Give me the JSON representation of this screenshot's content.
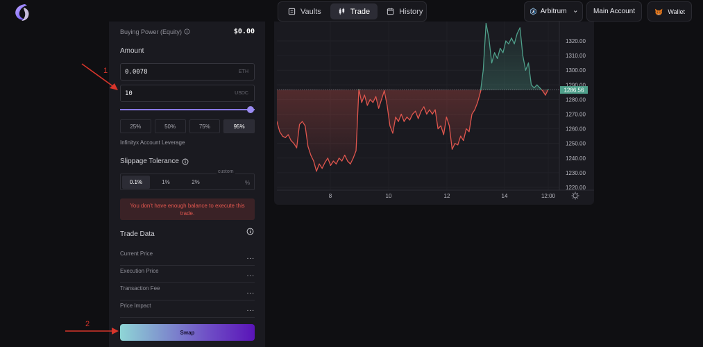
{
  "nav": {
    "tabs": [
      {
        "label": "Vaults",
        "icon": "vault-icon",
        "active": false
      },
      {
        "label": "Trade",
        "icon": "candles-icon",
        "active": true
      },
      {
        "label": "History",
        "icon": "history-icon",
        "active": false
      }
    ]
  },
  "header": {
    "network": "Arbitrum",
    "account": "Main Account",
    "wallet": "Wallet"
  },
  "panel": {
    "buying_power_label": "Buying Power (Equity)",
    "buying_power_value": "$0.00",
    "amount_label": "Amount",
    "eth_value": "0.0078",
    "eth_unit": "ETH",
    "usdc_value": "10",
    "usdc_unit": "USDC",
    "slider_fraction": 0.95,
    "percent_options": [
      "25%",
      "50%",
      "75%",
      "95%"
    ],
    "percent_selected": "95%",
    "leverage_note": "Infinityx Account Leverage",
    "slippage_title": "Slippage Tolerance",
    "slippage_options": [
      "0.1%",
      "1%",
      "2%"
    ],
    "slippage_selected": "0.1%",
    "custom_label": "custom",
    "custom_unit": "%",
    "error_text": "You don't have enough balance to execute this trade.",
    "trade_data_title": "Trade Data",
    "trade_rows": [
      {
        "label": "Current Price",
        "value": "..."
      },
      {
        "label": "Execution Price",
        "value": "..."
      },
      {
        "label": "Transaction Fee",
        "value": "..."
      },
      {
        "label": "Price Impact",
        "value": "..."
      }
    ],
    "swap_label": "Swap"
  },
  "annotations": [
    "1",
    "2"
  ],
  "colors": {
    "up": "#4fa08b",
    "down": "#e0564e",
    "accent": "#8a7ae6"
  },
  "chart_data": {
    "type": "area",
    "ylim": [
      1220,
      1330
    ],
    "y_ticks": [
      "1320.00",
      "1310.00",
      "1300.00",
      "1290.00",
      "1280.00",
      "1270.00",
      "1260.00",
      "1250.00",
      "1240.00",
      "1230.00",
      "1220.00"
    ],
    "x_ticks": [
      "8",
      "10",
      "12",
      "14",
      "12:00"
    ],
    "baseline": 1286.56,
    "last_price_label": "1286.56",
    "series": [
      {
        "values": [
          1265,
          1258,
          1255,
          1254,
          1256,
          1252,
          1250,
          1247,
          1263,
          1265,
          1262,
          1248,
          1242,
          1238,
          1231,
          1236,
          1233,
          1237,
          1240,
          1235,
          1238,
          1236,
          1240,
          1238,
          1242,
          1238,
          1236,
          1240,
          1245,
          1287,
          1278,
          1283,
          1276,
          1280,
          1278,
          1282,
          1274,
          1280,
          1286,
          1276,
          1262,
          1257,
          1268,
          1265,
          1270,
          1265,
          1268,
          1266,
          1270,
          1272,
          1267,
          1272,
          1275,
          1270,
          1273,
          1270,
          1273,
          1260,
          1262,
          1256,
          1268,
          1262,
          1246,
          1250,
          1249,
          1255,
          1252,
          1260,
          1258,
          1270,
          1273,
          1278,
          1285,
          1300,
          1332,
          1322,
          1305,
          1312,
          1308,
          1315,
          1312,
          1320,
          1318,
          1322,
          1318,
          1325,
          1329,
          1310,
          1300,
          1305,
          1290,
          1288,
          1290,
          1288,
          1286,
          1283,
          1287
        ]
      }
    ]
  }
}
